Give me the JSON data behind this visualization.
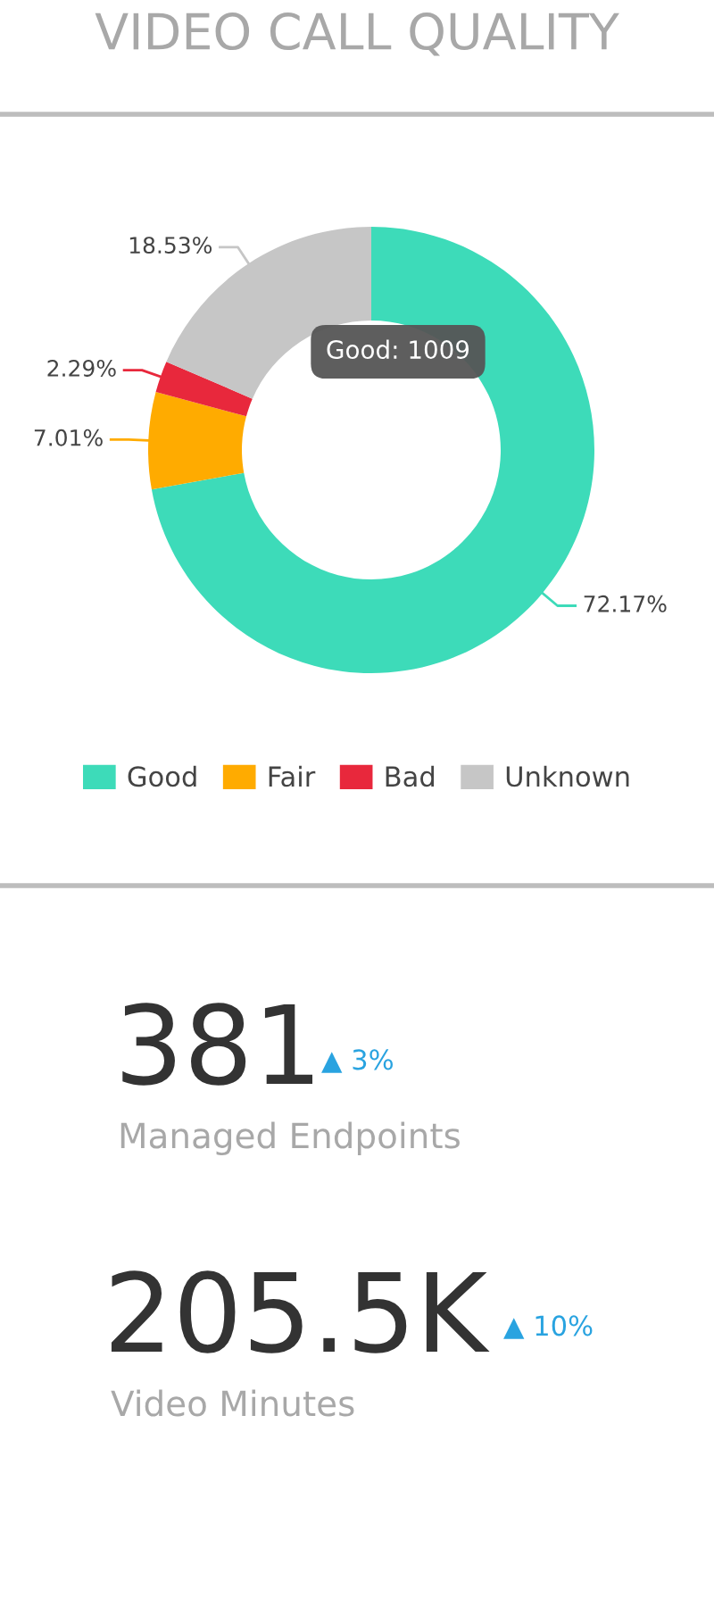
{
  "chart_data": [
    {
      "type": "donut",
      "title": "VIDEO CALL QUALITY",
      "categories": [
        "Good",
        "Fair",
        "Bad",
        "Unknown"
      ],
      "values": [
        72.17,
        7.01,
        2.29,
        18.53
      ],
      "colors": [
        "#3ddbb9",
        "#ffab00",
        "#e8283c",
        "#c6c6c6"
      ],
      "value_labels": [
        "72.17%",
        "7.01%",
        "2.29%",
        "18.53%"
      ],
      "annotations": [
        "Good: 1009"
      ],
      "legend": "bottom"
    },
    {
      "type": "other",
      "annotations": [
        "381",
        "▲ 3%",
        "Managed Endpoints",
        "205.5K",
        "▲ 10%",
        "Video Minutes"
      ]
    }
  ]
}
